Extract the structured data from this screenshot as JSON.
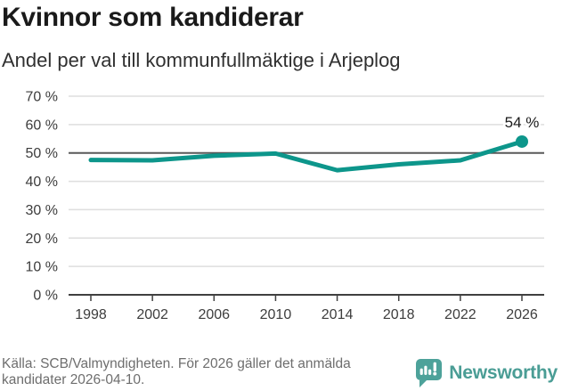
{
  "header": {
    "title": "Kvinnor som kandiderar",
    "subtitle": "Andel per val till kommunfullmäktige i Arjeplog"
  },
  "chart_data": {
    "type": "line",
    "title": "Kvinnor som kandiderar",
    "subtitle": "Andel per val till kommunfullmäktige i Arjeplog",
    "categories": [
      "1998",
      "2002",
      "2006",
      "2010",
      "2014",
      "2018",
      "2022",
      "2026"
    ],
    "values": [
      47.5,
      47.4,
      49,
      49.8,
      43.9,
      46,
      47.4,
      54
    ],
    "ylim": [
      0,
      70
    ],
    "yticks": [
      0,
      10,
      20,
      30,
      40,
      50,
      60,
      70
    ],
    "ytick_suffix": " %",
    "reference_line": 50,
    "last_point_label": "54 %",
    "grid": true,
    "legend": "none",
    "colors": {
      "line": "#0d968b",
      "grid": "#dedede",
      "reference": "#595959",
      "axis": "#404040"
    }
  },
  "footer": {
    "source_line1": "Källa: SCB/Valmyndigheten. För 2026 gäller det anmälda",
    "source_line2": "kandidater 2026-04-10.",
    "brand": "Newsworthy",
    "brand_color": "#4a9d95"
  }
}
